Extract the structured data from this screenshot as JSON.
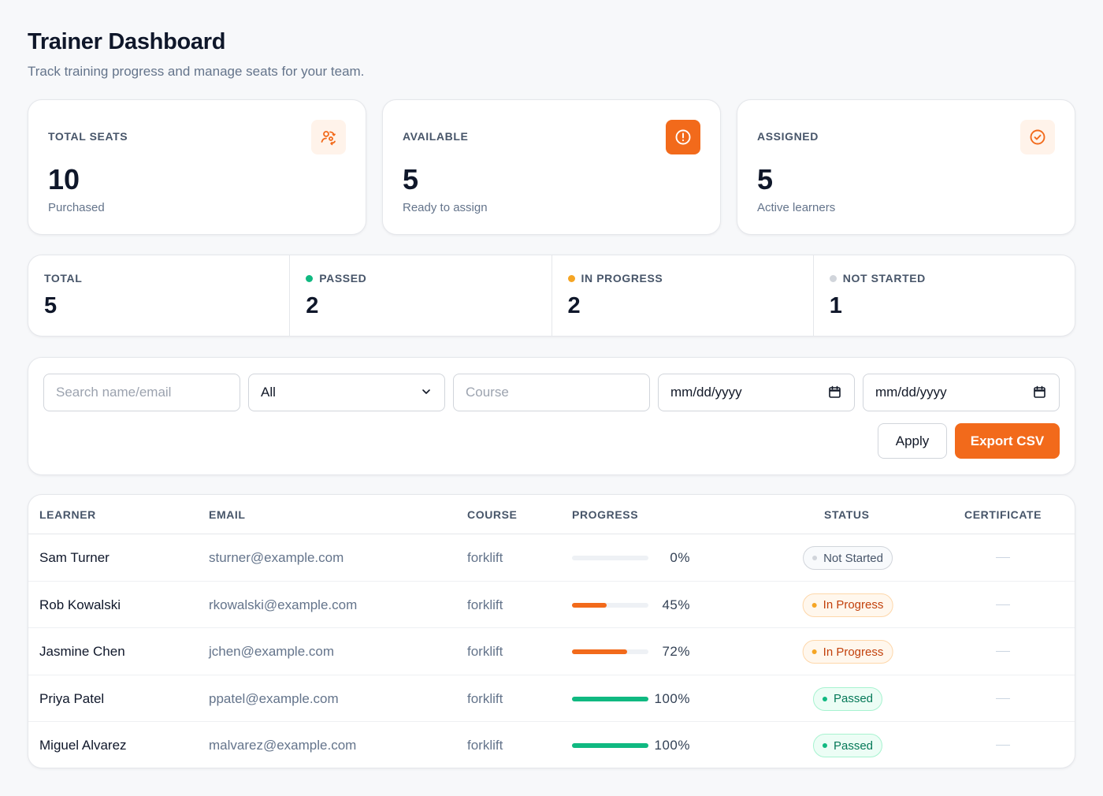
{
  "header": {
    "title": "Trainer Dashboard",
    "subtitle": "Track training progress and manage seats for your team."
  },
  "seat_cards": [
    {
      "label": "TOTAL SEATS",
      "value": "10",
      "note": "Purchased",
      "icon": "users-swap-icon",
      "accent": "#f26a1b"
    },
    {
      "label": "AVAILABLE",
      "value": "5",
      "note": "Ready to assign",
      "icon": "alert-circle-icon",
      "accent": "#f26a1b"
    },
    {
      "label": "ASSIGNED",
      "value": "5",
      "note": "Active learners",
      "icon": "check-circle-icon",
      "accent": "#f26a1b"
    }
  ],
  "stats": [
    {
      "label": "TOTAL",
      "value": "5",
      "dot": null
    },
    {
      "label": "PASSED",
      "value": "2",
      "dot": "#10b981"
    },
    {
      "label": "IN PROGRESS",
      "value": "2",
      "dot": "#f5a524"
    },
    {
      "label": "NOT STARTED",
      "value": "1",
      "dot": "#d1d5db"
    }
  ],
  "filters": {
    "search_placeholder": "Search name/email",
    "status_selected": "All",
    "course_placeholder": "Course",
    "date_from": "mm/dd/yyyy",
    "date_to": "mm/dd/yyyy",
    "apply_label": "Apply",
    "export_label": "Export CSV"
  },
  "table": {
    "headers": {
      "learner": "LEARNER",
      "email": "EMAIL",
      "course": "COURSE",
      "progress": "PROGRESS",
      "status": "STATUS",
      "certificate": "CERTIFICATE"
    },
    "rows": [
      {
        "name": "Sam Turner",
        "email": "sturner@example.com",
        "course": "forklift",
        "progress": 0,
        "progress_label": "0%",
        "status": "Not Started",
        "status_kind": "not-started",
        "certificate": "—"
      },
      {
        "name": "Rob Kowalski",
        "email": "rkowalski@example.com",
        "course": "forklift",
        "progress": 45,
        "progress_label": "45%",
        "status": "In Progress",
        "status_kind": "in-progress",
        "certificate": "—"
      },
      {
        "name": "Jasmine Chen",
        "email": "jchen@example.com",
        "course": "forklift",
        "progress": 72,
        "progress_label": "72%",
        "status": "In Progress",
        "status_kind": "in-progress",
        "certificate": "—"
      },
      {
        "name": "Priya Patel",
        "email": "ppatel@example.com",
        "course": "forklift",
        "progress": 100,
        "progress_label": "100%",
        "status": "Passed",
        "status_kind": "passed",
        "certificate": "—"
      },
      {
        "name": "Miguel Alvarez",
        "email": "malvarez@example.com",
        "course": "forklift",
        "progress": 100,
        "progress_label": "100%",
        "status": "Passed",
        "status_kind": "passed",
        "certificate": "—"
      }
    ]
  },
  "colors": {
    "accent": "#f26a1b",
    "in_progress_bar": "#f26a1b",
    "passed_bar": "#10b981",
    "passed_bg": "#ecfdf5",
    "passed_border": "#a7f3d0",
    "passed_text": "#047857",
    "progress_bg": "#fff7ed",
    "progress_border": "#fed7aa",
    "progress_text": "#c2410c",
    "progress_dot": "#f5a524",
    "notstarted_bg": "#f8fafc",
    "notstarted_border": "#d1d5db",
    "notstarted_text": "#475569",
    "notstarted_dot": "#d1d5db"
  }
}
